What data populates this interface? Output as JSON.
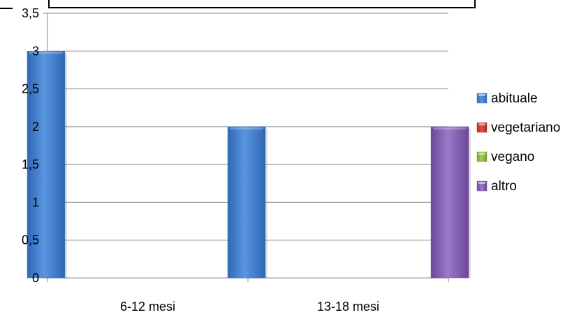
{
  "chart_data": {
    "type": "bar",
    "categories": [
      "6-12 mesi",
      "13-18 mesi"
    ],
    "series": [
      {
        "name": "abituale",
        "values": [
          3,
          2
        ],
        "color": "#4a84d4"
      },
      {
        "name": "vegetariano",
        "values": [
          0,
          0
        ],
        "color": "#d03a35"
      },
      {
        "name": "vegano",
        "values": [
          0,
          0
        ],
        "color": "#8db43a"
      },
      {
        "name": "altro",
        "values": [
          0,
          2
        ],
        "color": "#8660b4"
      }
    ],
    "y_ticks": [
      "0",
      "0,5",
      "1",
      "1,5",
      "2",
      "2,5",
      "3",
      "3,5"
    ],
    "ylim": [
      0,
      3.5
    ],
    "grid": true,
    "legend_position": "right"
  }
}
